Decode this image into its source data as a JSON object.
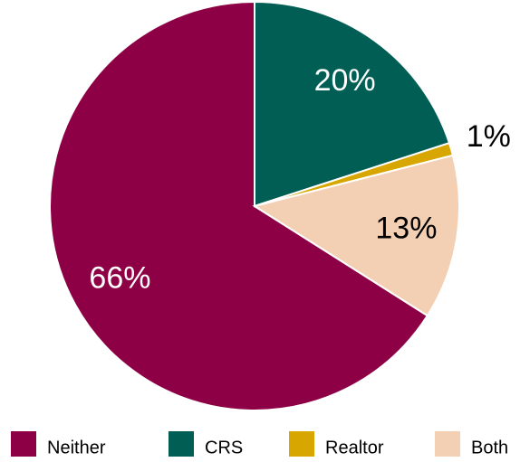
{
  "chart_data": {
    "type": "pie",
    "categories": [
      "Neither",
      "CRS",
      "Realtor",
      "Both"
    ],
    "values": [
      66,
      20,
      1,
      13
    ],
    "value_labels": [
      "66%",
      "20%",
      "1%",
      "13%"
    ],
    "colors": [
      "#8e0045",
      "#005e55",
      "#d8a600",
      "#f3d0b3"
    ],
    "legend": "bottom"
  }
}
